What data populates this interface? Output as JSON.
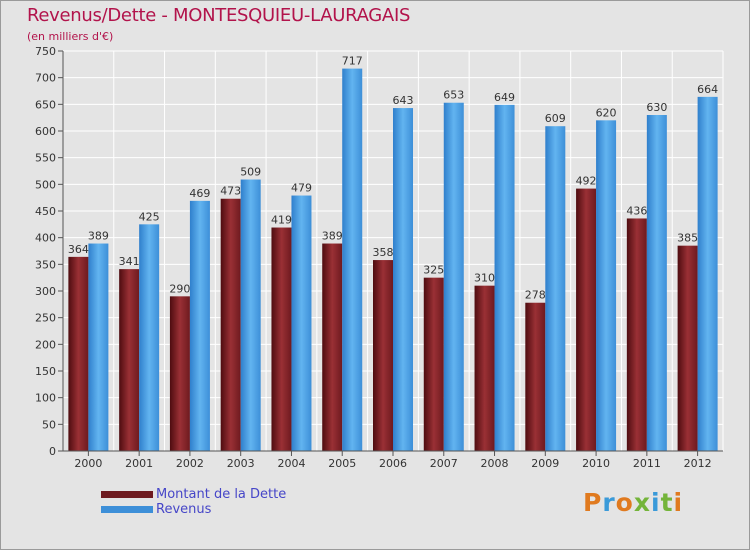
{
  "title": "Revenus/Dette - MONTESQUIEU-LAURAGAIS",
  "subtitle": "(en milliers d'€)",
  "logo": "Proxiti",
  "colors": {
    "dette": "#6e1a1f",
    "dette_light": "#9a2e33",
    "revenus": "#3d8fd8",
    "revenus_light": "#5aacea",
    "grid": "#ffffff",
    "title": "#b2134b"
  },
  "legend": [
    {
      "label": "Montant de la Dette",
      "color": "#6e1a1f"
    },
    {
      "label": "Revenus",
      "color": "#3d8fd8"
    }
  ],
  "chart_data": {
    "type": "bar",
    "title": "Revenus/Dette - MONTESQUIEU-LAURAGAIS",
    "ylabel": "(en milliers d'€)",
    "xlabel": "",
    "categories": [
      "2000",
      "2001",
      "2002",
      "2003",
      "2004",
      "2005",
      "2006",
      "2007",
      "2008",
      "2009",
      "2010",
      "2011",
      "2012"
    ],
    "series": [
      {
        "name": "Montant de la Dette",
        "values": [
          364,
          341,
          290,
          473,
          419,
          389,
          358,
          325,
          310,
          278,
          492,
          436,
          385
        ]
      },
      {
        "name": "Revenus",
        "values": [
          389,
          425,
          469,
          509,
          479,
          717,
          643,
          653,
          649,
          609,
          620,
          630,
          664
        ]
      }
    ],
    "ylim": [
      0,
      750
    ],
    "yticks": [
      0,
      50,
      100,
      150,
      200,
      250,
      300,
      350,
      400,
      450,
      500,
      550,
      600,
      650,
      700,
      750
    ],
    "grid": true,
    "legend_position": "bottom-left"
  }
}
